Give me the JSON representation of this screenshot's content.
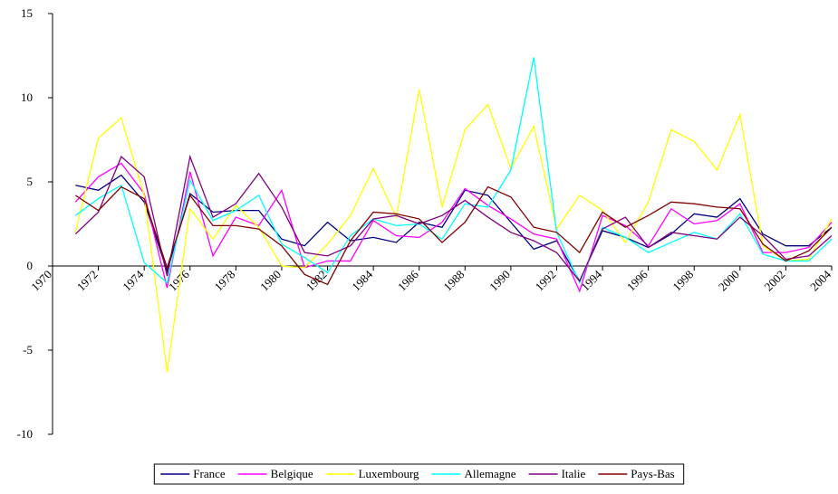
{
  "chart_data": {
    "type": "line",
    "x": [
      1971,
      1972,
      1973,
      1974,
      1975,
      1976,
      1977,
      1978,
      1979,
      1980,
      1981,
      1982,
      1983,
      1984,
      1985,
      1986,
      1987,
      1988,
      1989,
      1990,
      1991,
      1992,
      1993,
      1994,
      1995,
      1996,
      1997,
      1998,
      1999,
      2000,
      2001,
      2002,
      2003,
      2004
    ],
    "series": [
      {
        "name": "France",
        "color": "#000080",
        "values": [
          4.8,
          4.5,
          5.4,
          3.8,
          -0.3,
          4.3,
          3.2,
          3.3,
          3.3,
          1.6,
          1.2,
          2.6,
          1.5,
          1.7,
          1.4,
          2.6,
          2.3,
          4.5,
          4.2,
          2.6,
          1.0,
          1.5,
          -0.9,
          2.1,
          1.7,
          1.1,
          1.9,
          3.1,
          2.9,
          4.0,
          1.9,
          1.2,
          1.2,
          2.3
        ]
      },
      {
        "name": "Belgique",
        "color": "#ff00ff",
        "values": [
          3.8,
          5.3,
          6.1,
          4.3,
          -1.3,
          5.6,
          0.6,
          2.9,
          2.4,
          4.5,
          -0.1,
          0.3,
          0.3,
          2.7,
          1.8,
          1.7,
          2.6,
          4.6,
          3.6,
          2.8,
          1.9,
          1.6,
          -1.5,
          3.0,
          2.4,
          1.2,
          3.4,
          2.5,
          2.7,
          3.7,
          0.8,
          0.8,
          1.1,
          2.6
        ]
      },
      {
        "name": "Luxembourg",
        "color": "#ffff00",
        "values": [
          2.0,
          7.6,
          8.8,
          4.2,
          -6.3,
          3.4,
          1.6,
          3.6,
          2.3,
          0.0,
          -0.1,
          1.3,
          3.0,
          5.8,
          2.9,
          10.5,
          3.5,
          8.1,
          9.6,
          5.8,
          8.3,
          2.2,
          4.2,
          3.3,
          1.4,
          3.8,
          8.1,
          7.4,
          5.7,
          9.0,
          1.2,
          0.3,
          0.4,
          2.8
        ]
      },
      {
        "name": "Allemagne",
        "color": "#00ffff",
        "values": [
          3.0,
          4.0,
          4.8,
          0.2,
          -1.0,
          5.1,
          2.7,
          3.3,
          4.2,
          1.3,
          0.5,
          -0.4,
          1.8,
          2.8,
          2.4,
          2.5,
          1.6,
          3.7,
          3.5,
          5.7,
          12.4,
          2.0,
          -1.0,
          2.3,
          1.7,
          0.8,
          1.4,
          2.0,
          1.6,
          3.1,
          0.7,
          0.3,
          0.3,
          1.6
        ]
      },
      {
        "name": "Italie",
        "color": "#800080",
        "values": [
          1.9,
          3.2,
          6.5,
          5.3,
          -0.6,
          6.5,
          2.9,
          3.7,
          5.5,
          3.5,
          0.8,
          0.6,
          1.2,
          2.8,
          3.0,
          2.5,
          3.0,
          3.9,
          2.9,
          2.0,
          1.5,
          0.8,
          -0.9,
          2.2,
          2.9,
          1.1,
          2.0,
          1.8,
          1.6,
          2.9,
          1.8,
          0.4,
          0.6,
          1.8
        ]
      },
      {
        "name": "Pays-Bas",
        "color": "#800000",
        "values": [
          4.2,
          3.3,
          4.7,
          4.0,
          -0.1,
          4.2,
          2.4,
          2.4,
          2.2,
          1.2,
          -0.5,
          -1.1,
          1.5,
          3.2,
          3.1,
          2.8,
          1.4,
          2.6,
          4.7,
          4.1,
          2.3,
          2.0,
          0.8,
          3.2,
          2.3,
          3.0,
          3.8,
          3.7,
          3.5,
          3.4,
          1.3,
          0.3,
          0.9,
          2.3
        ]
      }
    ],
    "xlim": [
      1970,
      2004
    ],
    "xticks": [
      1970,
      1972,
      1974,
      1976,
      1978,
      1980,
      1982,
      1984,
      1986,
      1988,
      1990,
      1992,
      1994,
      1996,
      1998,
      2000,
      2002,
      2004
    ],
    "ylim": [
      -10,
      15
    ],
    "yticks": [
      -10,
      -5,
      0,
      5,
      10,
      15
    ],
    "legend": "bottom"
  }
}
